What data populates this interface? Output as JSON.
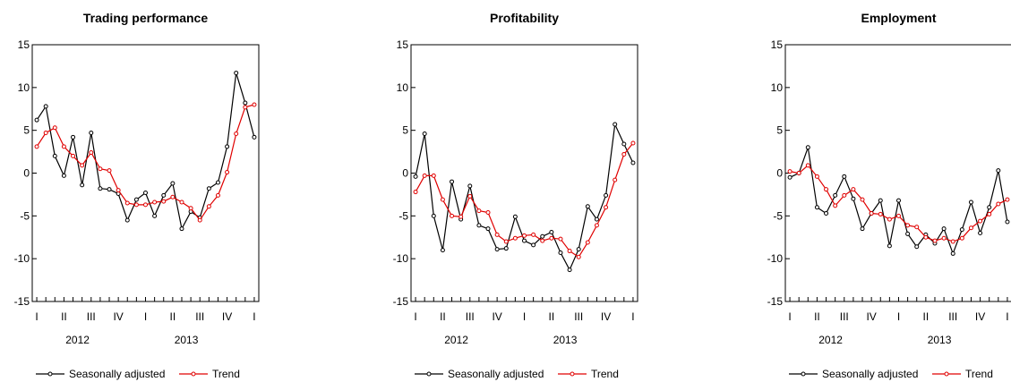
{
  "chart_data": [
    {
      "type": "line",
      "title": "Trading performance",
      "ylim": [
        -15,
        15
      ],
      "yticks": [
        15,
        10,
        5,
        0,
        -5,
        -10,
        -15
      ],
      "x_quarter_labels": [
        "I",
        "II",
        "III",
        "IV",
        "I",
        "II",
        "III",
        "IV",
        "I"
      ],
      "x_year_labels": [
        "2012",
        "2013"
      ],
      "grid": false,
      "legend_position": "bottom",
      "series": [
        {
          "name": "Seasonally adjusted",
          "color": "#000000",
          "values": [
            6.2,
            7.8,
            2.0,
            -0.3,
            4.2,
            -1.4,
            4.7,
            -1.8,
            -1.9,
            -2.4,
            -5.5,
            -3.1,
            -2.3,
            -5.0,
            -2.6,
            -1.2,
            -6.5,
            -4.5,
            -5.2,
            -1.8,
            -1.1,
            3.1,
            11.7,
            8.2,
            4.2
          ]
        },
        {
          "name": "Trend",
          "color": "#e00000",
          "values": [
            3.1,
            4.7,
            5.3,
            3.1,
            2.0,
            0.9,
            2.4,
            0.5,
            0.3,
            -2.0,
            -3.5,
            -3.7,
            -3.7,
            -3.4,
            -3.3,
            -2.8,
            -3.4,
            -4.1,
            -5.5,
            -3.9,
            -2.6,
            0.1,
            4.6,
            7.7,
            8.0
          ]
        }
      ]
    },
    {
      "type": "line",
      "title": "Profitability",
      "ylim": [
        -15,
        15
      ],
      "yticks": [
        15,
        10,
        5,
        0,
        -5,
        -10,
        -15
      ],
      "x_quarter_labels": [
        "I",
        "II",
        "III",
        "IV",
        "I",
        "II",
        "III",
        "IV",
        "I"
      ],
      "x_year_labels": [
        "2012",
        "2013"
      ],
      "grid": false,
      "legend_position": "bottom",
      "series": [
        {
          "name": "Seasonally adjusted",
          "color": "#000000",
          "values": [
            -0.4,
            4.6,
            -5.0,
            -9.0,
            -1.0,
            -5.4,
            -1.5,
            -6.1,
            -6.5,
            -8.9,
            -8.8,
            -5.1,
            -7.9,
            -8.4,
            -7.4,
            -6.9,
            -9.3,
            -11.3,
            -8.9,
            -3.9,
            -5.4,
            -2.6,
            5.7,
            3.4,
            1.2
          ]
        },
        {
          "name": "Trend",
          "color": "#e00000",
          "values": [
            -2.2,
            -0.3,
            -0.3,
            -3.1,
            -5.0,
            -5.1,
            -2.7,
            -4.4,
            -4.6,
            -7.2,
            -8.0,
            -7.6,
            -7.3,
            -7.2,
            -7.9,
            -7.6,
            -7.7,
            -9.1,
            -9.8,
            -8.1,
            -6.1,
            -4.0,
            -0.8,
            2.2,
            3.5
          ]
        }
      ]
    },
    {
      "type": "line",
      "title": "Employment",
      "ylim": [
        -15,
        15
      ],
      "yticks": [
        15,
        10,
        5,
        0,
        -5,
        -10,
        -15
      ],
      "x_quarter_labels": [
        "I",
        "II",
        "III",
        "IV",
        "I",
        "II",
        "III",
        "IV",
        "I"
      ],
      "x_year_labels": [
        "2012",
        "2013"
      ],
      "grid": false,
      "legend_position": "bottom",
      "series": [
        {
          "name": "Seasonally adjusted",
          "color": "#000000",
          "values": [
            -0.5,
            0.0,
            3.0,
            -4.0,
            -4.7,
            -2.6,
            -0.4,
            -3.0,
            -6.5,
            -4.7,
            -3.2,
            -8.5,
            -3.2,
            -7.1,
            -8.6,
            -7.2,
            -8.2,
            -6.5,
            -9.4,
            -6.6,
            -3.4,
            -7.0,
            -4.0,
            0.3,
            -5.7
          ]
        },
        {
          "name": "Trend",
          "color": "#e00000",
          "values": [
            0.2,
            0.0,
            0.9,
            -0.4,
            -1.9,
            -3.8,
            -2.6,
            -1.9,
            -3.1,
            -4.7,
            -4.8,
            -5.4,
            -5.0,
            -6.1,
            -6.3,
            -7.5,
            -7.9,
            -7.6,
            -8.0,
            -7.6,
            -6.4,
            -5.6,
            -4.8,
            -3.6,
            -3.1
          ]
        }
      ]
    }
  ]
}
